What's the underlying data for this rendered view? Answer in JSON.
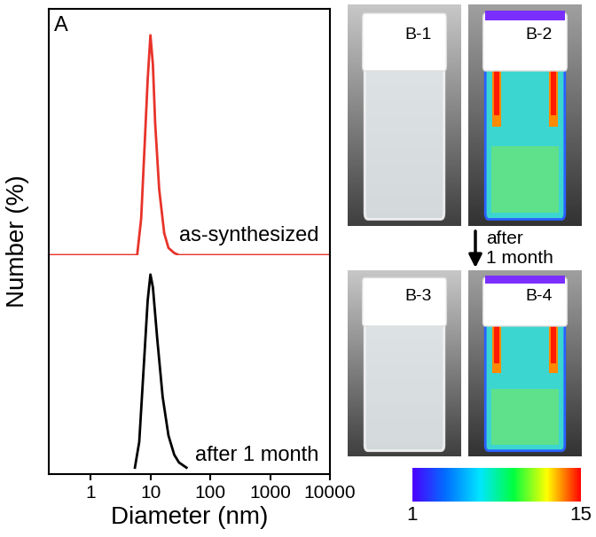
{
  "chart_data": [
    {
      "type": "line",
      "panel_label": "A",
      "log": "x",
      "tick_labels": false,
      "xlim": [
        0.2,
        10000
      ],
      "ylim": [
        0,
        33.6
      ],
      "series": [
        {
          "name": "as-synthesized",
          "color": "#e8332a",
          "x": [
            0.2,
            6,
            7,
            8,
            9,
            10,
            11,
            12,
            14,
            17,
            20,
            25,
            30,
            10000
          ],
          "values": [
            0,
            0,
            5,
            15,
            24,
            30,
            26,
            18,
            9,
            3,
            1,
            0.3,
            0,
            0
          ]
        }
      ]
    },
    {
      "type": "line",
      "log": "x",
      "tick_labels": "x",
      "x_label": "Diameter (nm)",
      "y_label": "Number (%)",
      "xlim": [
        0.2,
        10000
      ],
      "ylim": [
        -1,
        33
      ],
      "xticks": [
        1,
        10,
        100,
        1000,
        10000
      ],
      "series": [
        {
          "name": "after 1 month",
          "color": "#000000",
          "x": [
            5.5,
            6.5,
            8,
            9,
            10,
            11,
            13,
            16,
            20,
            25,
            30,
            40
          ],
          "values": [
            0,
            4,
            18,
            26,
            30,
            28,
            20,
            11,
            5,
            2,
            0.8,
            0
          ]
        }
      ]
    }
  ],
  "images": [
    {
      "label": "B-1"
    },
    {
      "label": "B-2"
    },
    {
      "label": "B-3"
    },
    {
      "label": "B-4"
    }
  ],
  "arrow_label": "after\n1 month",
  "colorbar": {
    "range": [
      1,
      15
    ],
    "ticks": [
      1,
      15
    ]
  }
}
